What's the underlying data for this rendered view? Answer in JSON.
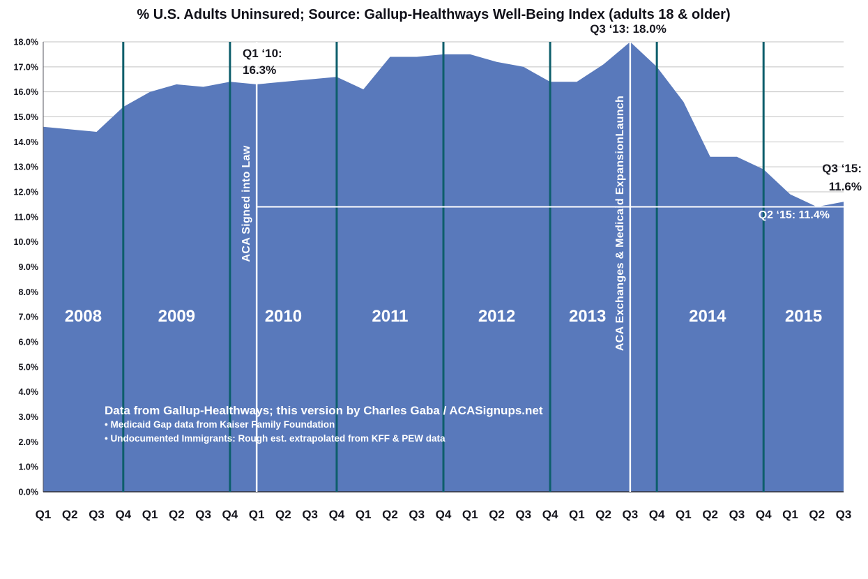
{
  "chart_data": {
    "type": "area",
    "title": "% U.S. Adults Uninsured; Source: Gallup-Healthways Well-Being Index (adults 18 & older)",
    "x": [
      "Q1",
      "Q2",
      "Q3",
      "Q4",
      "Q1",
      "Q2",
      "Q3",
      "Q4",
      "Q1",
      "Q2",
      "Q3",
      "Q4",
      "Q1",
      "Q2",
      "Q3",
      "Q4",
      "Q1",
      "Q2",
      "Q3",
      "Q4",
      "Q1",
      "Q2",
      "Q3",
      "Q4",
      "Q1",
      "Q2",
      "Q3",
      "Q4",
      "Q1",
      "Q2",
      "Q3"
    ],
    "values": [
      14.6,
      14.5,
      14.4,
      15.4,
      16.0,
      16.3,
      16.2,
      16.4,
      16.3,
      16.4,
      16.5,
      16.6,
      16.1,
      17.4,
      17.4,
      17.5,
      17.5,
      17.2,
      17.0,
      16.4,
      16.4,
      17.1,
      18.0,
      17.0,
      15.6,
      13.4,
      13.4,
      12.9,
      11.9,
      11.4,
      11.6
    ],
    "years": [
      {
        "label": "2008",
        "center_index": 1.5
      },
      {
        "label": "2009",
        "center_index": 5.0
      },
      {
        "label": "2010",
        "center_index": 9.0
      },
      {
        "label": "2011",
        "center_index": 13.0
      },
      {
        "label": "2012",
        "center_index": 17.0
      },
      {
        "label": "2013",
        "center_index": 20.4
      },
      {
        "label": "2014",
        "center_index": 24.9
      },
      {
        "label": "2015",
        "center_index": 28.5
      }
    ],
    "ylim": [
      0,
      18
    ],
    "yticks": [
      "0.0%",
      "1.0%",
      "2.0%",
      "3.0%",
      "4.0%",
      "5.0%",
      "6.0%",
      "7.0%",
      "8.0%",
      "9.0%",
      "10.0%",
      "11.0%",
      "12.0%",
      "13.0%",
      "14.0%",
      "15.0%",
      "16.0%",
      "17.0%",
      "18.0%"
    ],
    "grid": true,
    "legend": "none",
    "year_divider_indices": [
      3,
      7,
      11,
      15,
      19,
      23,
      27
    ],
    "event_lines": [
      {
        "label": "ACA Signed into Law",
        "x_index": 8
      },
      {
        "label": "ACA Exchanges & Medicaid ExpansionLaunch",
        "x_index": 22
      }
    ],
    "reference_line": {
      "value": 11.4,
      "from_index": 8,
      "label": "Q2 ‘15: 11.4%"
    },
    "annotations": {
      "q1_2010_line1": "Q1 ‘10:",
      "q1_2010_line2": "16.3%",
      "q3_2013": "Q3 ‘13: 18.0%",
      "q3_2015_line1": "Q3 ‘15:",
      "q3_2015_line2": "11.6%"
    },
    "source": {
      "main": "Data from Gallup-Healthways; this version by Charles Gaba / ACASignups.net",
      "bullet1": "• Medicaid Gap data from Kaiser Family Foundation",
      "bullet2": "• Undocumented Immigrants: Rough est. extrapolated from KFF & PEW data"
    },
    "colors": {
      "area": "#5979bb",
      "year_divider": "#0d5e6b",
      "grid": "#c2c2c2",
      "event_line": "#ffffff",
      "axis": "#2f2f38",
      "text_dark": "#17171f",
      "text_light": "#ffffff"
    }
  }
}
